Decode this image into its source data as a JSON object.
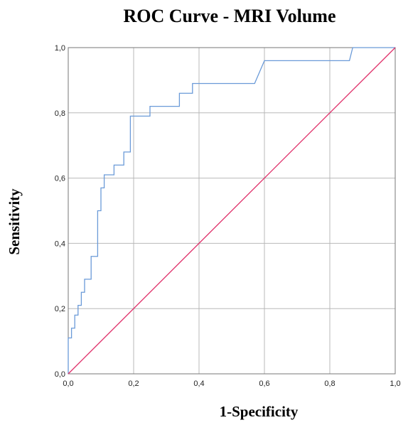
{
  "chart_data": {
    "type": "line",
    "title": "ROC Curve - MRI Volume",
    "xlabel": "1-Specificity",
    "ylabel": "Sensitivity",
    "xlim": [
      0,
      1
    ],
    "ylim": [
      0,
      1
    ],
    "x_ticks": [
      "0,0",
      "0,2",
      "0,4",
      "0,6",
      "0,8",
      "1,0"
    ],
    "y_ticks": [
      "0,0",
      "0,2",
      "0,4",
      "0,6",
      "0,8",
      "1,0"
    ],
    "grid": true,
    "legend": "none",
    "series": [
      {
        "color": "#6a9ad8",
        "points": [
          [
            0.0,
            0.0
          ],
          [
            0.0,
            0.07
          ],
          [
            0.0,
            0.11
          ],
          [
            0.01,
            0.11
          ],
          [
            0.01,
            0.14
          ],
          [
            0.02,
            0.14
          ],
          [
            0.02,
            0.18
          ],
          [
            0.03,
            0.18
          ],
          [
            0.03,
            0.21
          ],
          [
            0.04,
            0.21
          ],
          [
            0.04,
            0.25
          ],
          [
            0.05,
            0.25
          ],
          [
            0.05,
            0.29
          ],
          [
            0.07,
            0.29
          ],
          [
            0.07,
            0.36
          ],
          [
            0.09,
            0.36
          ],
          [
            0.09,
            0.5
          ],
          [
            0.1,
            0.5
          ],
          [
            0.1,
            0.57
          ],
          [
            0.11,
            0.57
          ],
          [
            0.11,
            0.61
          ],
          [
            0.14,
            0.61
          ],
          [
            0.14,
            0.64
          ],
          [
            0.17,
            0.64
          ],
          [
            0.17,
            0.68
          ],
          [
            0.19,
            0.68
          ],
          [
            0.19,
            0.79
          ],
          [
            0.25,
            0.79
          ],
          [
            0.25,
            0.82
          ],
          [
            0.34,
            0.82
          ],
          [
            0.34,
            0.86
          ],
          [
            0.38,
            0.86
          ],
          [
            0.38,
            0.89
          ],
          [
            0.57,
            0.89
          ],
          [
            0.6,
            0.96
          ],
          [
            0.86,
            0.96
          ],
          [
            0.87,
            1.0
          ],
          [
            1.0,
            1.0
          ]
        ]
      },
      {
        "color": "#e0306a",
        "points": [
          [
            0,
            0
          ],
          [
            1,
            1
          ]
        ]
      }
    ]
  }
}
